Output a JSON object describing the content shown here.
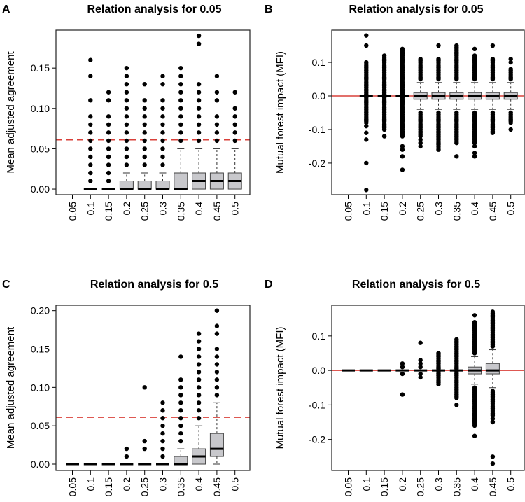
{
  "chart_data": [
    {
      "type": "box",
      "letter": "A",
      "title": "Relation analysis for 0.05",
      "ylabel": "Mean adjusted agreement",
      "xlabel": "",
      "ylim": [
        -0.0069,
        0.197
      ],
      "yticks": [
        "0.00",
        "0.05",
        "0.10",
        "0.15"
      ],
      "ytick_values": [
        0,
        0.05,
        0.1,
        0.15
      ],
      "categories": [
        "0.05",
        "0.1",
        "0.15",
        "0.2",
        "0.25",
        "0.3",
        "0.35",
        "0.4",
        "0.45",
        "0.5"
      ],
      "reference_line": {
        "value": 0.061,
        "style": "dashed",
        "color": "#d9403a"
      },
      "series": [
        {
          "box": null,
          "outliers": [],
          "runs": []
        },
        {
          "box": [
            0,
            0,
            0,
            0,
            0
          ],
          "outliers": [
            0.01,
            0.02,
            0.03,
            0.04,
            0.05,
            0.06,
            0.07,
            0.08,
            0.09,
            0.11,
            0.14,
            0.16
          ],
          "runs": []
        },
        {
          "box": [
            0,
            0,
            0,
            0,
            0
          ],
          "outliers": [
            0.01,
            0.02,
            0.03,
            0.04,
            0.05,
            0.06,
            0.07,
            0.08,
            0.09,
            0.11,
            0.12
          ],
          "runs": []
        },
        {
          "box": [
            0,
            0,
            0,
            0.01,
            0.02
          ],
          "outliers": [
            0.03,
            0.04,
            0.05,
            0.06,
            0.07,
            0.08,
            0.09,
            0.1,
            0.11,
            0.12,
            0.13,
            0.14,
            0.15
          ],
          "runs": []
        },
        {
          "box": [
            0,
            0,
            0,
            0.01,
            0.02
          ],
          "outliers": [
            0.03,
            0.04,
            0.05,
            0.06,
            0.07,
            0.08,
            0.09,
            0.1,
            0.11,
            0.13
          ],
          "runs": []
        },
        {
          "box": [
            0,
            0,
            0,
            0.01,
            0.02
          ],
          "outliers": [
            0.03,
            0.04,
            0.05,
            0.06,
            0.07,
            0.08,
            0.09,
            0.1,
            0.11,
            0.13,
            0.14
          ],
          "runs": []
        },
        {
          "box": [
            0,
            0,
            0,
            0.02,
            0.05
          ],
          "outliers": [
            0.06,
            0.07,
            0.08,
            0.09,
            0.1,
            0.11,
            0.12,
            0.13,
            0.14,
            0.15
          ],
          "runs": []
        },
        {
          "box": [
            0,
            0,
            0.01,
            0.02,
            0.05
          ],
          "outliers": [
            0.06,
            0.07,
            0.08,
            0.09,
            0.1,
            0.11,
            0.12,
            0.13,
            0.18,
            0.19
          ],
          "runs": []
        },
        {
          "box": [
            0,
            0,
            0.01,
            0.02,
            0.05
          ],
          "outliers": [
            0.06,
            0.07,
            0.08,
            0.09,
            0.11,
            0.12,
            0.14
          ],
          "runs": []
        },
        {
          "box": [
            0,
            0,
            0.01,
            0.02,
            0.05
          ],
          "outliers": [
            0.06,
            0.07,
            0.08,
            0.09,
            0.1,
            0.12
          ],
          "runs": []
        }
      ]
    },
    {
      "type": "box",
      "letter": "B",
      "title": "Relation analysis for 0.05",
      "ylabel": "Mutual forest impact (MFI)",
      "xlabel": "",
      "ylim": [
        -0.294,
        0.196
      ],
      "yticks": [
        "-0.2",
        "-0.1",
        "0.0",
        "0.1"
      ],
      "ytick_values": [
        -0.2,
        -0.1,
        0,
        0.1
      ],
      "categories": [
        "0.05",
        "0.1",
        "0.15",
        "0.2",
        "0.25",
        "0.3",
        "0.35",
        "0.4",
        "0.45",
        "0.5"
      ],
      "reference_line": {
        "value": 0,
        "style": "solid",
        "color": "#d9403a"
      },
      "series": [
        {
          "box": null,
          "outliers": [],
          "runs": []
        },
        {
          "box": [
            0,
            0,
            0,
            0,
            0
          ],
          "outliers": [
            -0.09,
            -0.11,
            -0.13,
            -0.2,
            -0.28,
            0.15,
            0.18
          ],
          "runs": [
            [
              -0.08,
              0.1
            ]
          ]
        },
        {
          "box": [
            0,
            0,
            0,
            0,
            0
          ],
          "outliers": [
            -0.12
          ],
          "runs": [
            [
              -0.1,
              0.12
            ]
          ]
        },
        {
          "box": [
            0,
            0,
            0,
            0,
            0
          ],
          "outliers": [
            -0.15,
            -0.16,
            -0.18,
            -0.22
          ],
          "runs": [
            [
              -0.12,
              0.14
            ]
          ]
        },
        {
          "box": [
            -0.04,
            -0.01,
            0,
            0.01,
            0.04
          ],
          "outliers": [
            -0.13,
            -0.14,
            -0.15
          ],
          "runs": [
            [
              0.05,
              0.11
            ],
            [
              -0.12,
              -0.05
            ]
          ]
        },
        {
          "box": [
            -0.04,
            -0.01,
            0,
            0.01,
            0.04
          ],
          "outliers": [
            0.15
          ],
          "runs": [
            [
              0.05,
              0.11
            ],
            [
              -0.16,
              -0.05
            ]
          ]
        },
        {
          "box": [
            -0.04,
            -0.01,
            0,
            0.01,
            0.04
          ],
          "outliers": [
            -0.18
          ],
          "runs": [
            [
              0.05,
              0.15
            ],
            [
              -0.14,
              -0.05
            ]
          ]
        },
        {
          "box": [
            -0.04,
            -0.01,
            0,
            0.01,
            0.04
          ],
          "outliers": [
            0.14,
            -0.15,
            -0.17,
            -0.18
          ],
          "runs": [
            [
              0.05,
              0.12
            ],
            [
              -0.14,
              -0.05
            ]
          ]
        },
        {
          "box": [
            -0.04,
            -0.01,
            0,
            0.01,
            0.04
          ],
          "outliers": [
            0.15
          ],
          "runs": [
            [
              0.05,
              0.11
            ],
            [
              -0.11,
              -0.05
            ]
          ]
        },
        {
          "box": [
            -0.04,
            -0.01,
            0,
            0.01,
            0.04
          ],
          "outliers": [
            0.1,
            0.11,
            -0.1
          ],
          "runs": [
            [
              0.05,
              0.08
            ],
            [
              -0.08,
              -0.05
            ]
          ]
        }
      ]
    },
    {
      "type": "box",
      "letter": "C",
      "title": "Relation analysis for 0.5",
      "ylabel": "Mean adjusted agreement",
      "xlabel": "",
      "ylim": [
        -0.0082,
        0.207
      ],
      "yticks": [
        "0.00",
        "0.05",
        "0.10",
        "0.15",
        "0.20"
      ],
      "ytick_values": [
        0,
        0.05,
        0.1,
        0.15,
        0.2
      ],
      "categories": [
        "0.05",
        "0.1",
        "0.15",
        "0.2",
        "0.25",
        "0.3",
        "0.35",
        "0.4",
        "0.45",
        "0.5"
      ],
      "reference_line": {
        "value": 0.061,
        "style": "dashed",
        "color": "#d9403a"
      },
      "series": [
        {
          "box": [
            0,
            0,
            0,
            0,
            0
          ],
          "outliers": [],
          "runs": []
        },
        {
          "box": [
            0,
            0,
            0,
            0,
            0
          ],
          "outliers": [],
          "runs": []
        },
        {
          "box": [
            0,
            0,
            0,
            0,
            0
          ],
          "outliers": [],
          "runs": []
        },
        {
          "box": [
            0,
            0,
            0,
            0,
            0
          ],
          "outliers": [
            0.01,
            0.02
          ],
          "runs": []
        },
        {
          "box": [
            0,
            0,
            0,
            0,
            0
          ],
          "outliers": [
            0.02,
            0.03,
            0.1
          ],
          "runs": []
        },
        {
          "box": [
            0,
            0,
            0,
            0,
            0
          ],
          "outliers": [
            0.01,
            0.02,
            0.03,
            0.04,
            0.05,
            0.06,
            0.07,
            0.08
          ],
          "runs": []
        },
        {
          "box": [
            0,
            0,
            0,
            0.01,
            0.02
          ],
          "outliers": [
            0.03,
            0.04,
            0.05,
            0.06,
            0.07,
            0.08,
            0.09,
            0.1,
            0.11,
            0.14
          ],
          "runs": []
        },
        {
          "box": [
            0,
            0,
            0.01,
            0.02,
            0.05
          ],
          "outliers": [
            0.06,
            0.07,
            0.08,
            0.09,
            0.1,
            0.11,
            0.12,
            0.13,
            0.14,
            0.15,
            0.16,
            0.17
          ],
          "runs": []
        },
        {
          "box": [
            0,
            0.01,
            0.02,
            0.04,
            0.08
          ],
          "outliers": [
            0.09,
            0.1,
            0.11,
            0.12,
            0.13,
            0.14,
            0.15,
            0.17,
            0.18,
            0.2
          ],
          "runs": []
        },
        {
          "box": null,
          "outliers": [],
          "runs": []
        }
      ]
    },
    {
      "type": "box",
      "letter": "D",
      "title": "Relation analysis for 0.5",
      "ylabel": "Mutual forest impact (MFI)",
      "xlabel": "",
      "ylim": [
        -0.29,
        0.189
      ],
      "yticks": [
        "-0.2",
        "-0.1",
        "0.0",
        "0.1"
      ],
      "ytick_values": [
        -0.2,
        -0.1,
        0,
        0.1
      ],
      "categories": [
        "0.05",
        "0.1",
        "0.15",
        "0.2",
        "0.25",
        "0.3",
        "0.35",
        "0.4",
        "0.45",
        "0.5"
      ],
      "reference_line": {
        "value": 0,
        "style": "solid",
        "color": "#d9403a"
      },
      "series": [
        {
          "box": [
            0,
            0,
            0,
            0,
            0
          ],
          "outliers": [],
          "runs": []
        },
        {
          "box": [
            0,
            0,
            0,
            0,
            0
          ],
          "outliers": [],
          "runs": []
        },
        {
          "box": [
            0,
            0,
            0,
            0,
            0
          ],
          "outliers": [],
          "runs": []
        },
        {
          "box": [
            0,
            0,
            0,
            0,
            0
          ],
          "outliers": [
            0.01,
            0.02,
            -0.01,
            -0.07
          ],
          "runs": []
        },
        {
          "box": [
            0,
            0,
            0,
            0,
            0
          ],
          "outliers": [
            0.01,
            0.02,
            0.03,
            0.08,
            -0.01,
            -0.02
          ],
          "runs": []
        },
        {
          "box": [
            0,
            0,
            0,
            0,
            0
          ],
          "outliers": [],
          "runs": [
            [
              -0.04,
              0.05
            ]
          ]
        },
        {
          "box": [
            0,
            0,
            0,
            0,
            0
          ],
          "outliers": [
            -0.1
          ],
          "runs": [
            [
              -0.08,
              0.09
            ]
          ]
        },
        {
          "box": [
            -0.04,
            -0.01,
            0,
            0.01,
            0.04
          ],
          "outliers": [
            0.16,
            -0.19
          ],
          "runs": [
            [
              0.05,
              0.14
            ],
            [
              -0.16,
              -0.05
            ]
          ]
        },
        {
          "box": [
            -0.05,
            -0.01,
            0,
            0.02,
            0.06
          ],
          "outliers": [
            -0.14,
            -0.15,
            -0.25,
            -0.27
          ],
          "runs": [
            [
              0.07,
              0.17
            ],
            [
              -0.13,
              -0.06
            ]
          ]
        },
        {
          "box": null,
          "outliers": [],
          "runs": []
        }
      ]
    }
  ]
}
